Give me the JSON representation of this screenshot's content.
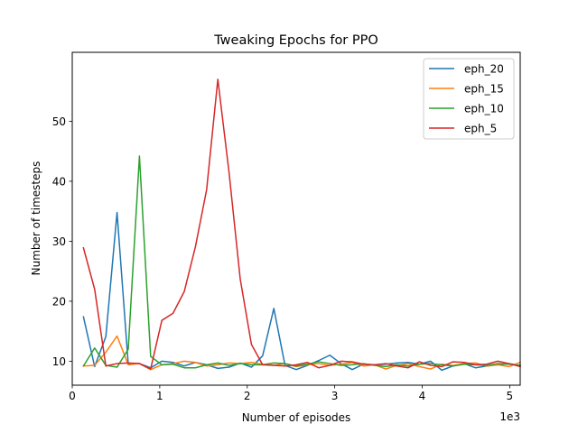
{
  "chart_data": {
    "type": "line",
    "title": "Tweaking Epochs for PPO",
    "xlabel": "Number of episodes",
    "ylabel": "Number of timesteps",
    "x_offset_text": "1e3",
    "xlim": [
      0,
      5.12
    ],
    "ylim": [
      6.0,
      61.5
    ],
    "x_ticks": [
      0,
      1,
      2,
      3,
      4,
      5
    ],
    "y_ticks": [
      10,
      20,
      30,
      40,
      50
    ],
    "grid": false,
    "legend_position": "top-right",
    "x": [
      0.128,
      0.256,
      0.384,
      0.512,
      0.64,
      0.768,
      0.896,
      1.024,
      1.152,
      1.28,
      1.408,
      1.536,
      1.664,
      1.792,
      1.92,
      2.048,
      2.176,
      2.304,
      2.432,
      2.56,
      2.688,
      2.816,
      2.944,
      3.072,
      3.2,
      3.328,
      3.456,
      3.584,
      3.712,
      3.84,
      3.968,
      4.096,
      4.224,
      4.352,
      4.48,
      4.608,
      4.736,
      4.864,
      4.992,
      5.12
    ],
    "series": [
      {
        "name": "eph_20",
        "color": "#1f77b4",
        "values": [
          17.4,
          9.1,
          14.1,
          34.8,
          9.5,
          9.6,
          8.9,
          10.0,
          9.8,
          9.2,
          9.8,
          9.4,
          8.8,
          9.0,
          9.7,
          9.0,
          10.9,
          18.8,
          9.3,
          8.6,
          9.3,
          10.1,
          11.0,
          9.6,
          8.6,
          9.5,
          9.4,
          9.5,
          9.7,
          9.8,
          9.5,
          10.0,
          8.5,
          9.2,
          9.6,
          8.9,
          9.2,
          9.4,
          9.6,
          9.3
        ]
      },
      {
        "name": "eph_15",
        "color": "#ff7f0e",
        "values": [
          9.2,
          9.3,
          11.5,
          14.2,
          9.4,
          9.6,
          8.6,
          9.4,
          9.6,
          10.0,
          9.8,
          9.2,
          9.4,
          9.7,
          9.6,
          9.8,
          9.5,
          9.3,
          9.6,
          9.1,
          9.4,
          9.6,
          9.3,
          9.5,
          9.8,
          9.2,
          9.4,
          8.7,
          9.3,
          9.6,
          9.1,
          8.7,
          9.5,
          9.3,
          9.6,
          9.7,
          9.2,
          9.4,
          9.1,
          9.8
        ]
      },
      {
        "name": "eph_10",
        "color": "#2ca02c",
        "values": [
          9.2,
          12.2,
          9.3,
          9.0,
          12.0,
          44.2,
          10.8,
          9.4,
          9.5,
          8.9,
          8.9,
          9.4,
          9.7,
          9.3,
          9.6,
          9.4,
          9.4,
          9.7,
          9.6,
          9.2,
          9.5,
          9.9,
          9.6,
          9.3,
          9.4,
          9.6,
          9.3,
          9.1,
          9.4,
          9.2,
          9.5,
          9.6,
          9.4,
          9.2,
          9.5,
          9.4,
          9.3,
          9.6,
          9.5,
          9.3
        ]
      },
      {
        "name": "eph_5",
        "color": "#d62728",
        "values": [
          28.9,
          22.0,
          9.2,
          9.6,
          9.7,
          9.6,
          8.7,
          16.8,
          18.0,
          21.6,
          29.1,
          38.6,
          57.0,
          41.5,
          23.7,
          12.8,
          9.4,
          9.3,
          9.2,
          9.4,
          9.8,
          8.9,
          9.3,
          10.0,
          9.9,
          9.5,
          9.4,
          9.6,
          9.2,
          8.9,
          9.9,
          9.3,
          9.1,
          9.9,
          9.8,
          9.4,
          9.5,
          10.0,
          9.6,
          9.1
        ]
      }
    ]
  }
}
